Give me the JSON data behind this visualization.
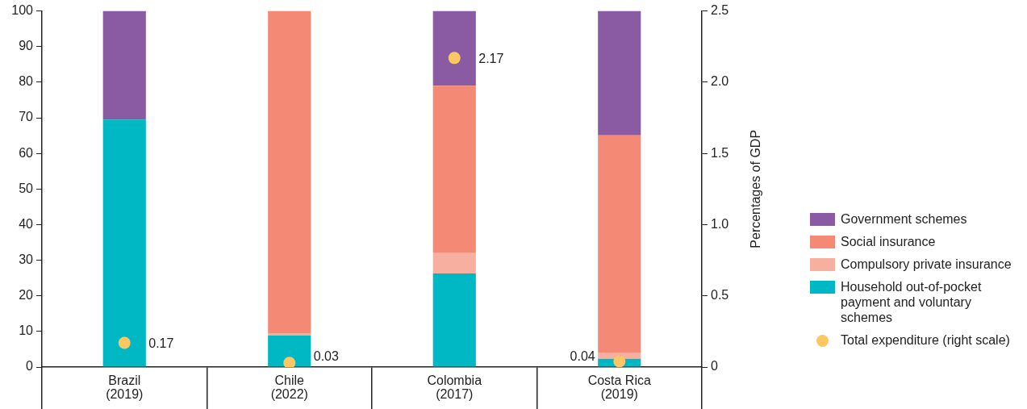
{
  "chart_data": {
    "type": "bar",
    "stacked": true,
    "categories": [
      "Brazil\n(2019)",
      "Chile\n(2022)",
      "Colombia\n(2017)",
      "Costa Rica\n(2019)"
    ],
    "series": [
      {
        "name": "Household out-of-pocket payment and voluntary schemes",
        "color": "#00b8c3",
        "values": [
          69.5,
          8.9,
          26.3,
          2.3
        ]
      },
      {
        "name": "Compulsory private insurance",
        "color": "#f7b0a0",
        "values": [
          0,
          0.6,
          5.7,
          1.8
        ]
      },
      {
        "name": "Social insurance",
        "color": "#f48a76",
        "values": [
          0,
          90.5,
          47.0,
          61.0
        ]
      },
      {
        "name": "Government schemes",
        "color": "#8a5ba3",
        "values": [
          30.5,
          0,
          21.0,
          34.9
        ]
      },
      {
        "name": "Total expenditure (right scale)",
        "type": "scatter",
        "axis": "y2",
        "marker": "circle",
        "color": "#fdc864",
        "values": [
          0.17,
          0.03,
          2.17,
          0.04
        ],
        "value_labels": [
          "0.17",
          "0.03",
          "2.17",
          "0.04"
        ]
      }
    ],
    "ylim": [
      0,
      100
    ],
    "yticks": [
      0,
      10,
      20,
      30,
      40,
      50,
      60,
      70,
      80,
      90,
      100
    ],
    "y2lim": [
      0,
      2.5
    ],
    "y2ticks": [
      0,
      0.5,
      {
        "value": 1,
        "label": "1.0"
      },
      1.5,
      {
        "value": 2,
        "label": "2.0"
      },
      2.5
    ],
    "y2label": "Percentages of GDP",
    "grid": false,
    "legend": "right"
  }
}
